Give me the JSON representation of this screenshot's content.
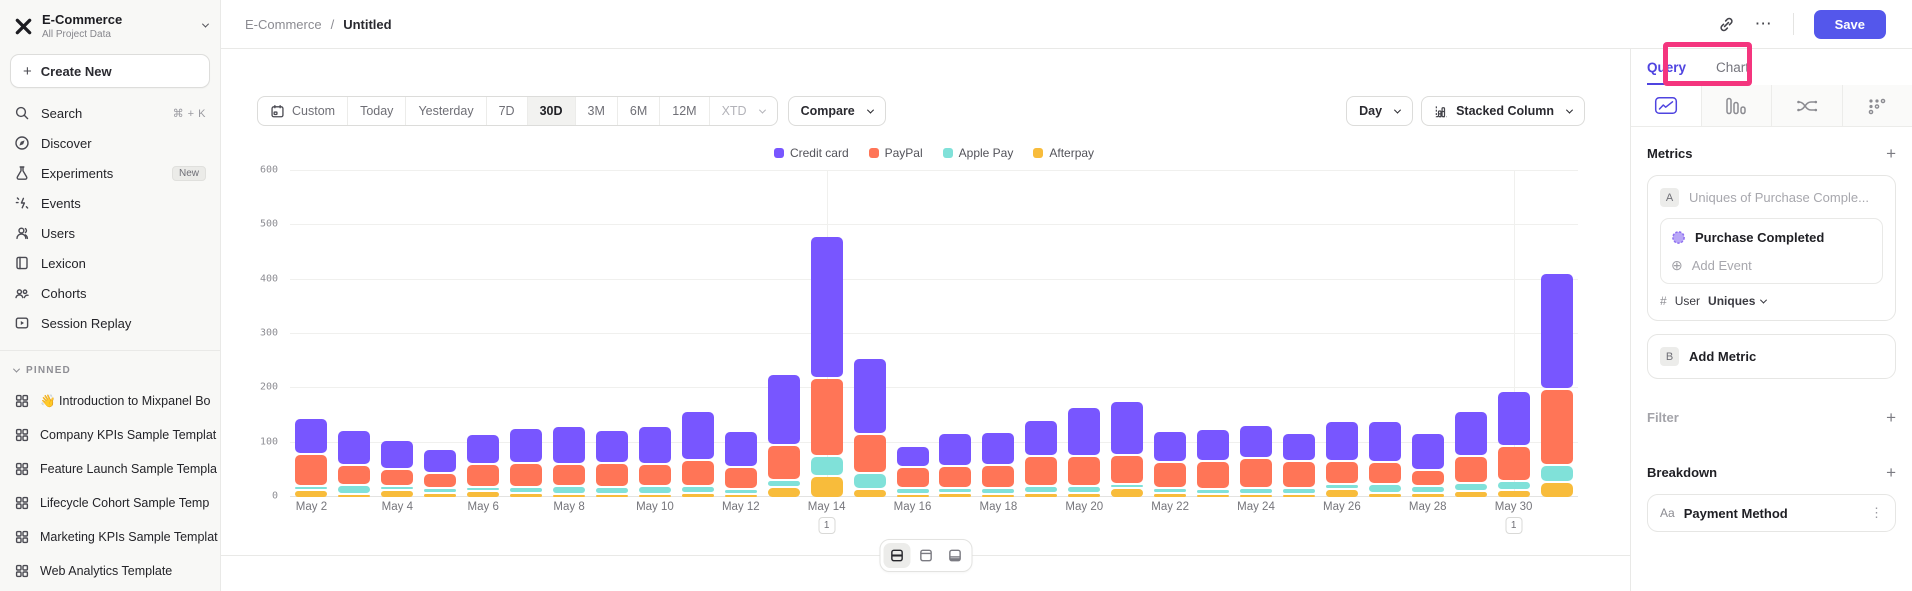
{
  "annotation": {
    "highlight_color": "#f4357e",
    "highlighted_element": "Chart tab"
  },
  "sidebar": {
    "workspace": {
      "name": "E-Commerce",
      "subtitle": "All Project Data"
    },
    "create_new": "Create New",
    "nav": [
      {
        "label": "Search",
        "icon": "search",
        "shortcut": "⌘ + K"
      },
      {
        "label": "Discover",
        "icon": "discover"
      },
      {
        "label": "Experiments",
        "icon": "experiments",
        "badge": "New"
      },
      {
        "label": "Events",
        "icon": "events"
      },
      {
        "label": "Users",
        "icon": "users"
      },
      {
        "label": "Lexicon",
        "icon": "lexicon"
      },
      {
        "label": "Cohorts",
        "icon": "cohorts"
      },
      {
        "label": "Session Replay",
        "icon": "session-replay"
      }
    ],
    "pinned_header": "PINNED",
    "pinned": [
      "👋 Introduction to Mixpanel Bo",
      "Company KPIs Sample Templat",
      "Feature Launch Sample Templa",
      "Lifecycle Cohort Sample Temp",
      "Marketing KPIs Sample Templat",
      "Web Analytics Template"
    ]
  },
  "header": {
    "breadcrumb_project": "E-Commerce",
    "breadcrumb_separator": "/",
    "breadcrumb_page": "Untitled",
    "more_label": "⋯",
    "save_label": "Save"
  },
  "toolbar": {
    "date_ranges": [
      "Custom",
      "Today",
      "Yesterday",
      "7D",
      "30D",
      "3M",
      "6M",
      "12M",
      "XTD"
    ],
    "selected_range": "30D",
    "compare_label": "Compare",
    "granularity_label": "Day",
    "chart_type_label": "Stacked Column"
  },
  "panel": {
    "query_tab": "Query",
    "chart_tab": "Chart",
    "active_tab": "Query",
    "metrics": {
      "title": "Metrics",
      "slot_a": "A",
      "metric_placeholder": "Uniques of Purchase Comple...",
      "event_name": "Purchase Completed",
      "add_event": "Add Event",
      "hash": "#",
      "user_label": "User",
      "uniques_label": "Uniques",
      "slot_b": "B",
      "add_metric": "Add Metric"
    },
    "filter": {
      "title": "Filter"
    },
    "breakdown": {
      "title": "Breakdown",
      "type_chip": "Aa",
      "property": "Payment Method"
    }
  },
  "chart_data": {
    "type": "bar",
    "variant": "stacked_column",
    "x": [
      "May 2",
      "May 3",
      "May 4",
      "May 5",
      "May 6",
      "May 7",
      "May 8",
      "May 9",
      "May 10",
      "May 11",
      "May 12",
      "May 13",
      "May 14",
      "May 15",
      "May 16",
      "May 17",
      "May 18",
      "May 19",
      "May 20",
      "May 21",
      "May 22",
      "May 23",
      "May 24",
      "May 25",
      "May 26",
      "May 27",
      "May 28",
      "May 29",
      "May 30",
      "May 31"
    ],
    "x_tick_every": 2,
    "ylim": [
      0,
      600
    ],
    "yticks": [
      0,
      100,
      200,
      300,
      400,
      500,
      600
    ],
    "grid": true,
    "legend_position": "top-center",
    "legend_order": [
      "Credit card",
      "PayPal",
      "Apple Pay",
      "Afterpay"
    ],
    "series": [
      {
        "name": "Afterpay",
        "color": "#f8bc3b",
        "values": [
          14,
          8,
          14,
          10,
          12,
          10,
          8,
          7,
          8,
          10,
          6,
          21,
          40,
          16,
          8,
          10,
          8,
          10,
          10,
          18,
          10,
          8,
          8,
          8,
          16,
          10,
          10,
          13,
          14,
          29
        ]
      },
      {
        "name": "Apple Pay",
        "color": "#80e1d9",
        "values": [
          8,
          16,
          5,
          9,
          8,
          10,
          14,
          12,
          13,
          12,
          8,
          12,
          38,
          30,
          10,
          8,
          10,
          12,
          12,
          6,
          8,
          8,
          10,
          10,
          10,
          16,
          12,
          15,
          18,
          31
        ]
      },
      {
        "name": "PayPal",
        "color": "#ff7557",
        "values": [
          58,
          36,
          31,
          28,
          42,
          45,
          41,
          44,
          42,
          48,
          40,
          64,
          143,
          72,
          38,
          40,
          42,
          55,
          55,
          52,
          48,
          52,
          55,
          50,
          42,
          40,
          30,
          49,
          64,
          140
        ]
      },
      {
        "name": "Credit card",
        "color": "#7856ff",
        "values": [
          67,
          65,
          53,
          44,
          56,
          64,
          70,
          61,
          70,
          90,
          66,
          132,
          262,
          140,
          39,
          62,
          62,
          66,
          90,
          100,
          57,
          58,
          62,
          52,
          74,
          76,
          67,
          83,
          101,
          215
        ]
      }
    ],
    "annotations": [
      {
        "index": 12,
        "x": "May 14",
        "label": "1"
      },
      {
        "index": 28,
        "x": "May 30",
        "label": "1"
      }
    ]
  }
}
